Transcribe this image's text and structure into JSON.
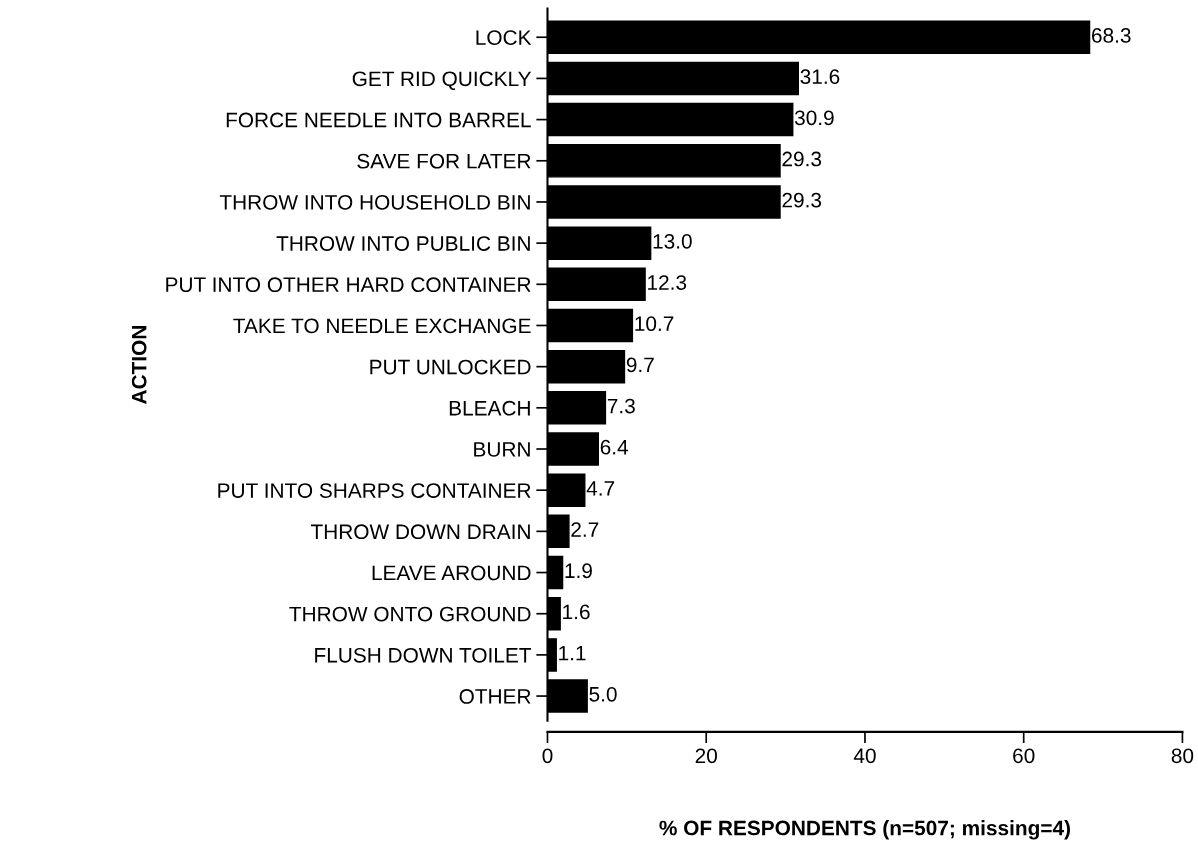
{
  "chart_data": {
    "type": "bar",
    "orientation": "horizontal",
    "xlabel": "% OF RESPONDENTS (n=507; missing=4)",
    "ylabel": "ACTION",
    "categories": [
      "LOCK",
      "GET RID QUICKLY",
      "FORCE NEEDLE INTO BARREL",
      "SAVE FOR LATER",
      "THROW INTO HOUSEHOLD BIN",
      "THROW INTO PUBLIC BIN",
      "PUT INTO OTHER HARD CONTAINER",
      "TAKE TO NEEDLE EXCHANGE",
      "PUT UNLOCKED",
      "BLEACH",
      "BURN",
      "PUT INTO SHARPS CONTAINER",
      "THROW DOWN DRAIN",
      "LEAVE AROUND",
      "THROW ONTO GROUND",
      "FLUSH DOWN TOILET",
      "OTHER"
    ],
    "values": [
      68.3,
      31.6,
      30.9,
      29.3,
      29.3,
      13.0,
      12.3,
      10.7,
      9.7,
      7.3,
      6.4,
      4.7,
      2.7,
      1.9,
      1.6,
      1.1,
      5.0
    ],
    "value_labels": [
      "68.3",
      "31.6",
      "30.9",
      "29.3",
      "29.3",
      "13.0",
      "12.3",
      "10.7",
      "9.7",
      "7.3",
      "6.4",
      "4.7",
      "2.7",
      "1.9",
      "1.6",
      "1.1",
      "5.0"
    ],
    "color": "#000000",
    "xlim": [
      0,
      80
    ],
    "xticks": [
      0,
      20,
      40,
      60,
      80
    ],
    "grid": false,
    "legend": false
  }
}
